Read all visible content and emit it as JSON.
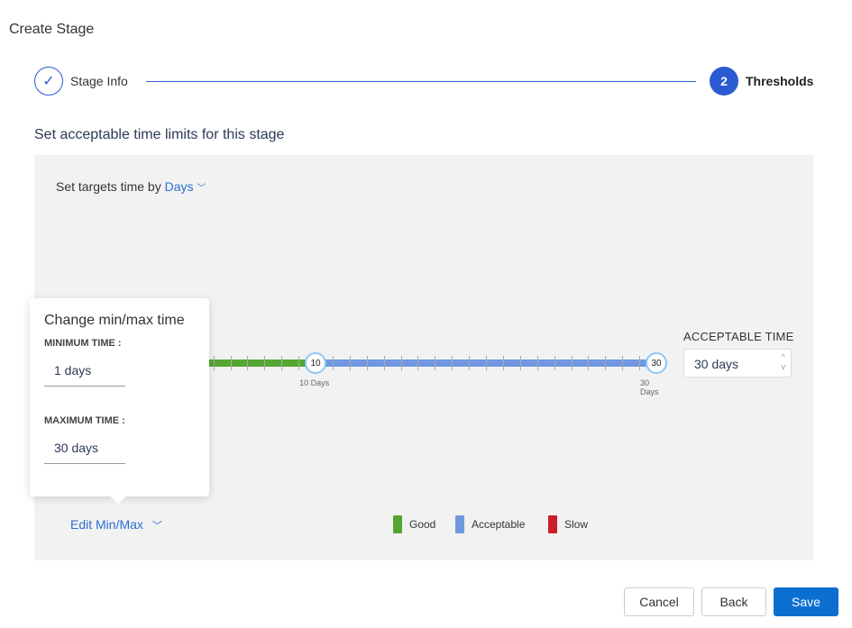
{
  "title": "Create Stage",
  "steps": [
    {
      "label": "Stage Info",
      "status": "complete",
      "icon": "check-icon"
    },
    {
      "number": "2",
      "label": "Thresholds",
      "status": "active"
    }
  ],
  "subtitle": "Set acceptable time limits for this stage",
  "targets": {
    "prefix": "Set targets time by",
    "unit": "Days"
  },
  "slider": {
    "min": 1,
    "max": 30,
    "good_until": 10,
    "acceptable_until": 30,
    "knobs": [
      {
        "value": "10",
        "label": "10 Days"
      },
      {
        "value": "30",
        "label": "30 Days"
      }
    ]
  },
  "acceptable": {
    "label": "ACCEPTABLE TIME",
    "value": "30 days",
    "spin_up": "^",
    "spin_down": "v"
  },
  "popup": {
    "title": "Change min/max time",
    "min_label": "MINIMUM TIME :",
    "min_value": "1 days",
    "max_label": "MAXIMUM TIME :",
    "max_value": "30 days"
  },
  "edit_minmax": "Edit Min/Max",
  "legend": [
    {
      "label": "Good",
      "color": "#55a630"
    },
    {
      "label": "Acceptable",
      "color": "#6f98e0"
    },
    {
      "label": "Slow",
      "color": "#cc1f2a"
    }
  ],
  "buttons": {
    "cancel": "Cancel",
    "back": "Back",
    "save": "Save"
  }
}
